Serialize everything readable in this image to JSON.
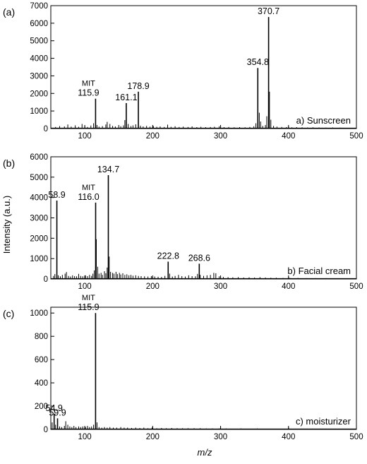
{
  "figure": {
    "ylabel": "Intensity (a.u.)",
    "xlabel": "m/z"
  },
  "chart_data": [
    {
      "type": "bar",
      "panel_letter": "(a)",
      "sample_label": "a) Sunscreen",
      "xlim": [
        50,
        500
      ],
      "ylim": [
        0,
        7000
      ],
      "xticks": [
        100,
        200,
        300,
        400,
        500
      ],
      "yticks": [
        0,
        1000,
        2000,
        3000,
        4000,
        5000,
        6000,
        7000
      ],
      "peaks": [
        {
          "x": 115.9,
          "y": 1700,
          "label": "115.9",
          "tag": "MIT"
        },
        {
          "x": 161.1,
          "y": 1450,
          "label": "161.1"
        },
        {
          "x": 178.9,
          "y": 2100,
          "label": "178.9"
        },
        {
          "x": 354.8,
          "y": 3450,
          "label": "354.8"
        },
        {
          "x": 370.7,
          "y": 6350,
          "label": "370.7"
        }
      ],
      "minor_peaks": [
        [
          57,
          90
        ],
        [
          63,
          140
        ],
        [
          70,
          120
        ],
        [
          75,
          230
        ],
        [
          80,
          110
        ],
        [
          86,
          180
        ],
        [
          91,
          100
        ],
        [
          96,
          260
        ],
        [
          100,
          140
        ],
        [
          104,
          90
        ],
        [
          109,
          170
        ],
        [
          113,
          300
        ],
        [
          118,
          200
        ],
        [
          121,
          110
        ],
        [
          126,
          140
        ],
        [
          131,
          230
        ],
        [
          133,
          380
        ],
        [
          137,
          260
        ],
        [
          141,
          150
        ],
        [
          145,
          120
        ],
        [
          150,
          200
        ],
        [
          153,
          130
        ],
        [
          157,
          180
        ],
        [
          159,
          480
        ],
        [
          164,
          260
        ],
        [
          168,
          140
        ],
        [
          171,
          180
        ],
        [
          175,
          240
        ],
        [
          182,
          160
        ],
        [
          186,
          120
        ],
        [
          191,
          150
        ],
        [
          196,
          110
        ],
        [
          201,
          140
        ],
        [
          206,
          100
        ],
        [
          211,
          120
        ],
        [
          217,
          90
        ],
        [
          222,
          220
        ],
        [
          227,
          100
        ],
        [
          233,
          130
        ],
        [
          239,
          90
        ],
        [
          245,
          110
        ],
        [
          252,
          90
        ],
        [
          258,
          120
        ],
        [
          265,
          80
        ],
        [
          271,
          100
        ],
        [
          278,
          80
        ],
        [
          285,
          90
        ],
        [
          291,
          100
        ],
        [
          298,
          130
        ],
        [
          305,
          80
        ],
        [
          312,
          90
        ],
        [
          320,
          70
        ],
        [
          328,
          80
        ],
        [
          336,
          70
        ],
        [
          343,
          90
        ],
        [
          349,
          130
        ],
        [
          352,
          300
        ],
        [
          357,
          900
        ],
        [
          359,
          400
        ],
        [
          362,
          150
        ],
        [
          366,
          200
        ],
        [
          368,
          700
        ],
        [
          372,
          2100
        ],
        [
          374,
          500
        ],
        [
          378,
          150
        ],
        [
          383,
          110
        ],
        [
          390,
          90
        ],
        [
          397,
          80
        ],
        [
          405,
          70
        ],
        [
          412,
          80
        ],
        [
          420,
          70
        ],
        [
          428,
          60
        ],
        [
          436,
          70
        ],
        [
          445,
          60
        ],
        [
          455,
          50
        ],
        [
          465,
          60
        ],
        [
          476,
          50
        ],
        [
          488,
          40
        ]
      ]
    },
    {
      "type": "bar",
      "panel_letter": "(b)",
      "sample_label": "b) Facial cream",
      "xlim": [
        50,
        500
      ],
      "ylim": [
        0,
        6000
      ],
      "xticks": [
        100,
        200,
        300,
        400,
        500
      ],
      "yticks": [
        0,
        1000,
        2000,
        3000,
        4000,
        5000,
        6000
      ],
      "peaks": [
        {
          "x": 58.9,
          "y": 3850,
          "label": "58.9"
        },
        {
          "x": 116.0,
          "y": 3750,
          "label": "116.0",
          "tag": "MIT"
        },
        {
          "x": 134.7,
          "y": 5100,
          "label": "134.7"
        },
        {
          "x": 222.8,
          "y": 850,
          "label": "222.8"
        },
        {
          "x": 268.6,
          "y": 750,
          "label": "268.6"
        }
      ],
      "minor_peaks": [
        [
          54,
          150
        ],
        [
          56,
          240
        ],
        [
          61,
          180
        ],
        [
          64,
          130
        ],
        [
          67,
          200
        ],
        [
          71,
          260
        ],
        [
          73,
          340
        ],
        [
          76,
          150
        ],
        [
          79,
          120
        ],
        [
          82,
          180
        ],
        [
          85,
          140
        ],
        [
          88,
          130
        ],
        [
          91,
          250
        ],
        [
          94,
          150
        ],
        [
          97,
          130
        ],
        [
          101,
          180
        ],
        [
          104,
          140
        ],
        [
          107,
          200
        ],
        [
          110,
          150
        ],
        [
          112,
          260
        ],
        [
          114,
          420
        ],
        [
          117,
          1950
        ],
        [
          119,
          600
        ],
        [
          121,
          260
        ],
        [
          124,
          300
        ],
        [
          126,
          200
        ],
        [
          129,
          380
        ],
        [
          131,
          280
        ],
        [
          133,
          560
        ],
        [
          136,
          1100
        ],
        [
          138,
          350
        ],
        [
          141,
          300
        ],
        [
          143,
          260
        ],
        [
          146,
          350
        ],
        [
          148,
          240
        ],
        [
          151,
          300
        ],
        [
          153,
          220
        ],
        [
          156,
          280
        ],
        [
          159,
          200
        ],
        [
          162,
          230
        ],
        [
          165,
          180
        ],
        [
          168,
          200
        ],
        [
          171,
          160
        ],
        [
          175,
          180
        ],
        [
          179,
          150
        ],
        [
          183,
          140
        ],
        [
          188,
          130
        ],
        [
          193,
          120
        ],
        [
          198,
          140
        ],
        [
          203,
          120
        ],
        [
          208,
          110
        ],
        [
          213,
          100
        ],
        [
          218,
          150
        ],
        [
          225,
          260
        ],
        [
          229,
          120
        ],
        [
          233,
          150
        ],
        [
          238,
          200
        ],
        [
          243,
          140
        ],
        [
          248,
          120
        ],
        [
          253,
          180
        ],
        [
          258,
          140
        ],
        [
          263,
          130
        ],
        [
          266,
          250
        ],
        [
          270,
          200
        ],
        [
          275,
          150
        ],
        [
          280,
          180
        ],
        [
          285,
          200
        ],
        [
          290,
          300
        ],
        [
          293,
          280
        ],
        [
          298,
          130
        ],
        [
          304,
          100
        ],
        [
          311,
          90
        ],
        [
          318,
          80
        ],
        [
          326,
          90
        ],
        [
          334,
          70
        ],
        [
          342,
          80
        ],
        [
          350,
          70
        ],
        [
          358,
          90
        ],
        [
          366,
          70
        ],
        [
          374,
          60
        ],
        [
          382,
          60
        ],
        [
          392,
          50
        ],
        [
          402,
          50
        ],
        [
          414,
          50
        ],
        [
          426,
          40
        ],
        [
          440,
          40
        ],
        [
          455,
          40
        ],
        [
          470,
          30
        ]
      ]
    },
    {
      "type": "bar",
      "panel_letter": "(c)",
      "sample_label": "c) moisturizer",
      "xlim": [
        50,
        500
      ],
      "ylim": [
        0,
        1050
      ],
      "xticks": [
        100,
        200,
        300,
        400,
        500
      ],
      "yticks": [
        0,
        200,
        400,
        600,
        800,
        1000
      ],
      "peaks": [
        {
          "x": 54.9,
          "y": 135,
          "label": "54.9"
        },
        {
          "x": 59.9,
          "y": 95,
          "label": "59.9"
        },
        {
          "x": 115.9,
          "y": 1000,
          "label": "115.9",
          "tag": "MIT"
        }
      ],
      "minor_peaks": [
        [
          52,
          60
        ],
        [
          57,
          40
        ],
        [
          63,
          25
        ],
        [
          66,
          20
        ],
        [
          70,
          30
        ],
        [
          72,
          70
        ],
        [
          75,
          40
        ],
        [
          78,
          25
        ],
        [
          81,
          20
        ],
        [
          84,
          30
        ],
        [
          87,
          20
        ],
        [
          91,
          25
        ],
        [
          94,
          20
        ],
        [
          97,
          25
        ],
        [
          101,
          20
        ],
        [
          104,
          30
        ],
        [
          107,
          20
        ],
        [
          110,
          25
        ],
        [
          113,
          40
        ],
        [
          118,
          60
        ],
        [
          121,
          20
        ],
        [
          125,
          15
        ],
        [
          129,
          20
        ],
        [
          133,
          15
        ],
        [
          137,
          20
        ],
        [
          142,
          15
        ],
        [
          147,
          15
        ],
        [
          153,
          20
        ],
        [
          158,
          15
        ],
        [
          163,
          15
        ],
        [
          169,
          12
        ],
        [
          175,
          15
        ],
        [
          181,
          12
        ],
        [
          187,
          15
        ],
        [
          193,
          10
        ],
        [
          199,
          15
        ],
        [
          206,
          10
        ],
        [
          213,
          12
        ],
        [
          220,
          10
        ],
        [
          228,
          12
        ],
        [
          236,
          10
        ],
        [
          244,
          10
        ],
        [
          252,
          10
        ],
        [
          261,
          10
        ],
        [
          270,
          10
        ],
        [
          279,
          8
        ],
        [
          288,
          8
        ],
        [
          298,
          8
        ],
        [
          308,
          8
        ],
        [
          318,
          6
        ],
        [
          330,
          8
        ],
        [
          342,
          6
        ],
        [
          354,
          8
        ],
        [
          366,
          6
        ],
        [
          380,
          5
        ],
        [
          395,
          5
        ],
        [
          410,
          5
        ],
        [
          428,
          4
        ],
        [
          446,
          4
        ],
        [
          465,
          4
        ],
        [
          485,
          3
        ]
      ]
    }
  ]
}
